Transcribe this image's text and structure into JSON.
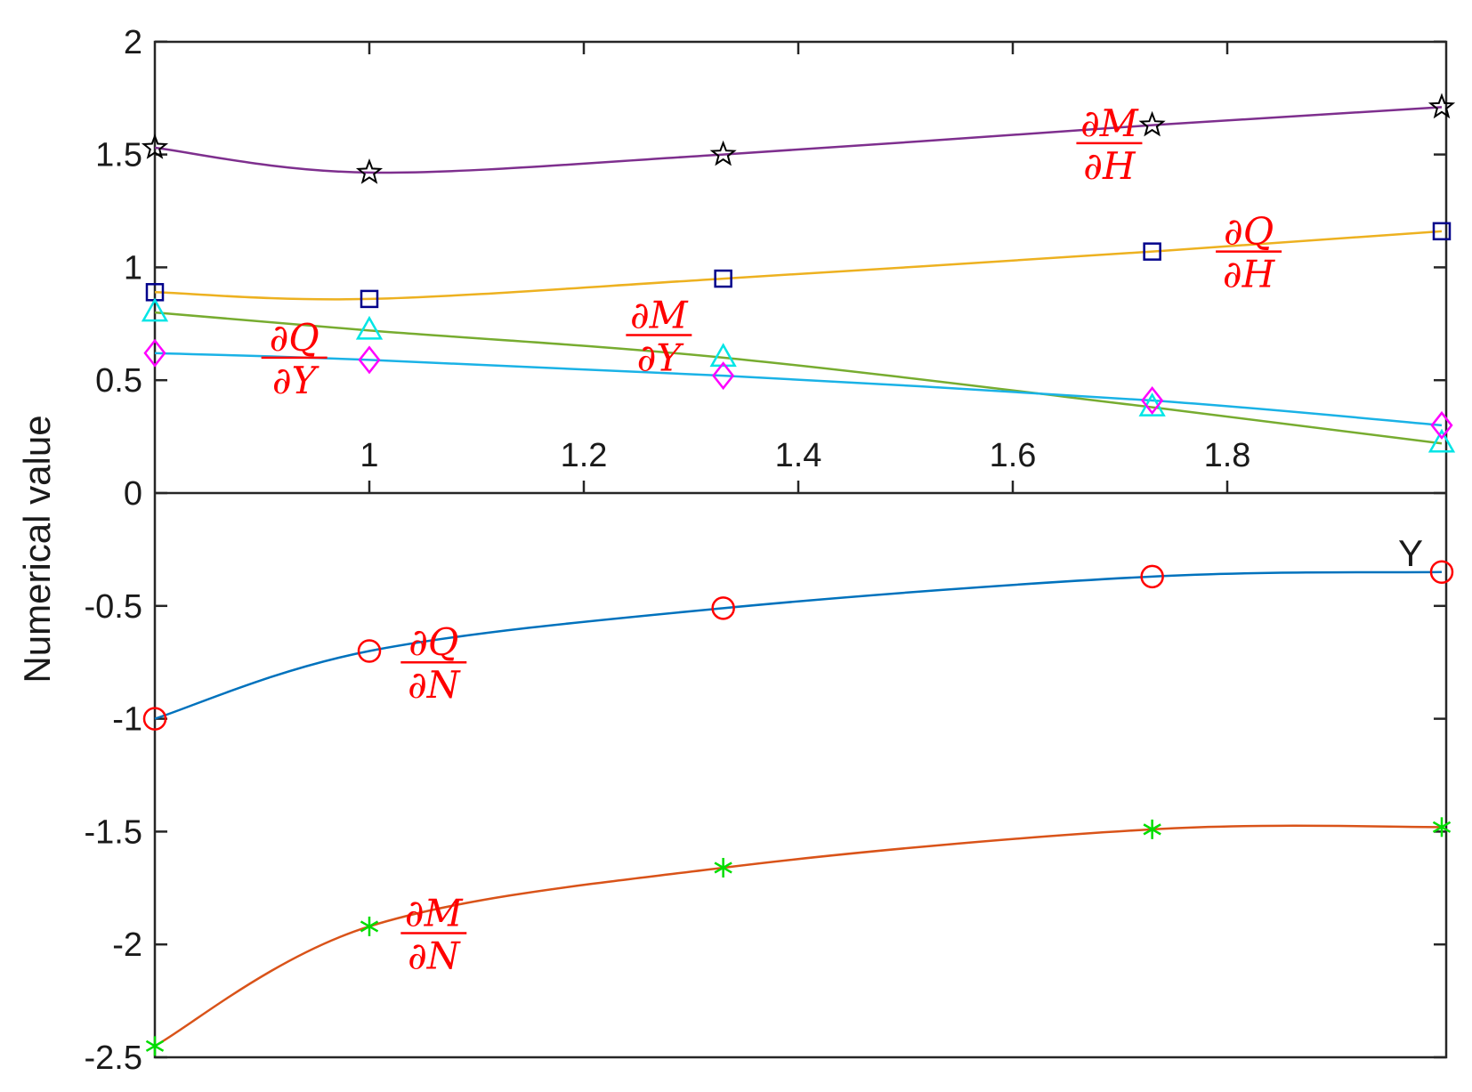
{
  "chart_data": {
    "type": "line",
    "title": "",
    "ylabel": "Numerical value",
    "xlabel": "Y",
    "xlim": [
      0.7,
      2.0
    ],
    "ylim": [
      -2.5,
      2
    ],
    "x_ticks": [
      {
        "value": 1,
        "label": "1"
      },
      {
        "value": 1.2,
        "label": "1.2"
      },
      {
        "value": 1.4,
        "label": "1.4"
      },
      {
        "value": 1.6,
        "label": "1.6"
      },
      {
        "value": 1.8,
        "label": "1.8"
      }
    ],
    "y_ticks": [
      {
        "value": 2,
        "label": "2"
      },
      {
        "value": 1.5,
        "label": "1.5"
      },
      {
        "value": 1,
        "label": "1"
      },
      {
        "value": 0.5,
        "label": "0.5"
      },
      {
        "value": 0,
        "label": "0"
      },
      {
        "value": -0.5,
        "label": "-0.5"
      },
      {
        "value": -1,
        "label": "-1"
      },
      {
        "value": -1.5,
        "label": "-1.5"
      },
      {
        "value": -2,
        "label": "-2"
      },
      {
        "value": -2.5,
        "label": "-2.5"
      }
    ],
    "x": [
      0.8,
      1.0,
      1.33,
      1.73,
      2.0
    ],
    "grid": false,
    "series": [
      {
        "label_num": "∂M",
        "label_den": "∂H",
        "label_pos": {
          "x": 1.69,
          "y": 1.55
        },
        "line_color": "#7e2f8e",
        "marker": "star",
        "marker_color": "#000000",
        "values": [
          1.53,
          1.42,
          1.5,
          1.63,
          1.71
        ]
      },
      {
        "label_num": "∂Q",
        "label_den": "∂H",
        "label_pos": {
          "x": 1.82,
          "y": 1.07
        },
        "line_color": "#edb120",
        "marker": "square",
        "marker_color": "#00008b",
        "values": [
          0.89,
          0.86,
          0.95,
          1.07,
          1.16
        ]
      },
      {
        "label_num": "∂M",
        "label_den": "∂Y",
        "label_pos": {
          "x": 1.27,
          "y": 0.7
        },
        "line_color": "#77ac30",
        "marker": "triangle",
        "marker_color": "#00e5e5",
        "values": [
          0.8,
          0.72,
          0.6,
          0.38,
          0.22
        ]
      },
      {
        "label_num": "∂Q",
        "label_den": "∂Y",
        "label_pos": {
          "x": 0.93,
          "y": 0.6
        },
        "line_color": "#1ab2e6",
        "marker": "diamond",
        "marker_color": "#ff00ff",
        "values": [
          0.62,
          0.59,
          0.52,
          0.41,
          0.3
        ]
      },
      {
        "label_num": "∂Q",
        "label_den": "∂N",
        "label_pos": {
          "x": 1.06,
          "y": -0.75
        },
        "line_color": "#0072bd",
        "marker": "circle",
        "marker_color": "#ff0000",
        "values": [
          -1.0,
          -0.7,
          -0.51,
          -0.37,
          -0.35
        ]
      },
      {
        "label_num": "∂M",
        "label_den": "∂N",
        "label_pos": {
          "x": 1.06,
          "y": -1.95
        },
        "line_color": "#d95319",
        "marker": "asterisk",
        "marker_color": "#00dd00",
        "values": [
          -2.45,
          -1.92,
          -1.66,
          -1.49,
          -1.48
        ]
      }
    ]
  }
}
